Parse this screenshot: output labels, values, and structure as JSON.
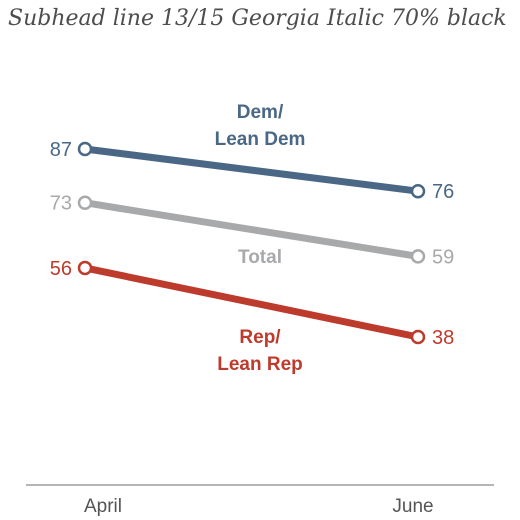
{
  "subhead": "Subhead line 13/15 Georgia Italic 70% black",
  "chart_data": {
    "type": "line",
    "categories": [
      "April",
      "June"
    ],
    "series": [
      {
        "name": "Dem/ Lean Dem",
        "label_lines": [
          "Dem/",
          "Lean Dem"
        ],
        "values": [
          87,
          76
        ],
        "color": "#4a6785"
      },
      {
        "name": "Total",
        "label_lines": [
          "Total"
        ],
        "values": [
          73,
          59
        ],
        "color": "#a8a9ab"
      },
      {
        "name": "Rep/ Lean Rep",
        "label_lines": [
          "Rep/",
          "Lean Rep"
        ],
        "values": [
          56,
          38
        ],
        "color": "#bd3b2c"
      }
    ],
    "xlabel": "",
    "ylabel": "",
    "grid": false,
    "legend": "inline labels"
  }
}
